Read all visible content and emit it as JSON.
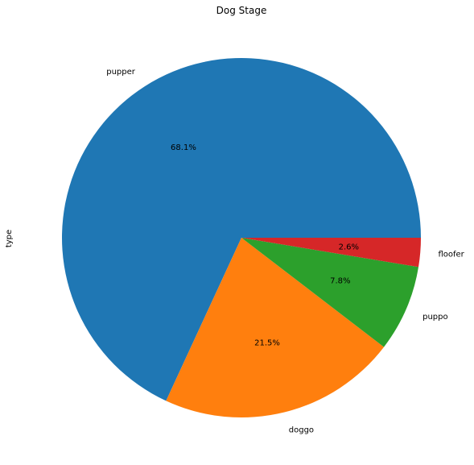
{
  "chart_data": {
    "type": "pie",
    "title": "Dog Stage",
    "ylabel": "type",
    "slices": [
      {
        "label": "pupper",
        "percent_label": "68.1%",
        "value": 68.1,
        "color": "#1f77b4"
      },
      {
        "label": "doggo",
        "percent_label": "21.5%",
        "value": 21.5,
        "color": "#ff7f0e"
      },
      {
        "label": "puppo",
        "percent_label": "7.8%",
        "value": 7.8,
        "color": "#2ca02c"
      },
      {
        "label": "floofer",
        "percent_label": "2.6%",
        "value": 2.6,
        "color": "#d62728"
      }
    ],
    "start_angle": "3 o'clock",
    "direction": "counterclockwise",
    "legend": "none",
    "grid": false
  }
}
